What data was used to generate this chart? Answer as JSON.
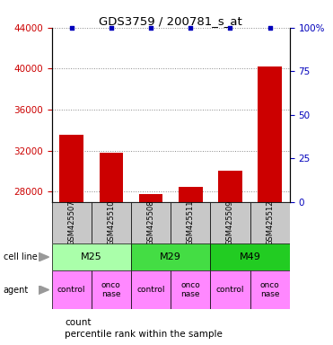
{
  "title": "GDS3759 / 200781_s_at",
  "samples": [
    "GSM425507",
    "GSM425510",
    "GSM425508",
    "GSM425511",
    "GSM425509",
    "GSM425512"
  ],
  "counts": [
    33500,
    31800,
    27800,
    28500,
    30000,
    40200
  ],
  "percentile_ranks": [
    100,
    100,
    100,
    100,
    100,
    100
  ],
  "ylim_left": [
    27000,
    44000
  ],
  "ylim_right": [
    0,
    100
  ],
  "yticks_left": [
    28000,
    32000,
    36000,
    40000,
    44000
  ],
  "yticks_right": [
    0,
    25,
    50,
    75,
    100
  ],
  "cell_lines": [
    {
      "label": "M25",
      "cols": [
        0,
        1
      ],
      "color": "#AAFFAA"
    },
    {
      "label": "M29",
      "cols": [
        2,
        3
      ],
      "color": "#44DD44"
    },
    {
      "label": "M49",
      "cols": [
        4,
        5
      ],
      "color": "#22CC22"
    }
  ],
  "agents": [
    "control",
    "onconase",
    "control",
    "onconase",
    "control",
    "onconase"
  ],
  "agent_color": "#FF88FF",
  "bar_color": "#CC0000",
  "dot_color": "#0000BB",
  "sample_bg_color": "#C8C8C8",
  "left_label_color": "#CC0000",
  "right_label_color": "#0000BB",
  "legend_count_color": "#CC0000",
  "legend_pct_color": "#0000BB"
}
